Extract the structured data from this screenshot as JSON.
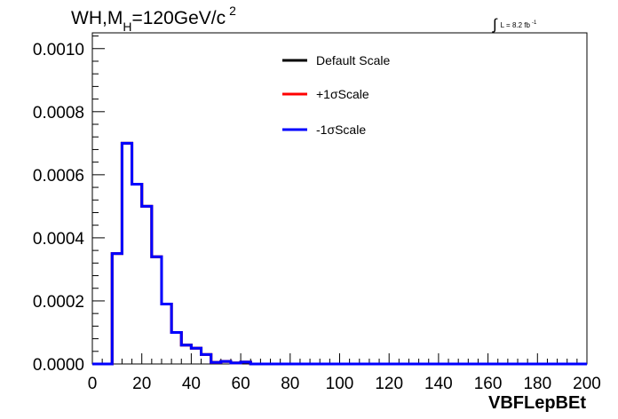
{
  "chart_data": {
    "type": "line",
    "title": {
      "prefix": "WH,M",
      "sub": "H",
      "mid": "=120GeV/c",
      "sup": "2"
    },
    "lumi_label": {
      "integral": "∫",
      "text": "L = 8.2 fb",
      "sup": "-1"
    },
    "xlabel": "VBFLepBEt",
    "ylabel": "",
    "xlim": [
      0,
      200
    ],
    "ylim": [
      0,
      0.00105
    ],
    "x_ticks": [
      "0",
      "20",
      "40",
      "60",
      "80",
      "100",
      "120",
      "140",
      "160",
      "180",
      "200"
    ],
    "y_ticks": [
      "0.0000",
      "0.0002",
      "0.0004",
      "0.0006",
      "0.0008",
      "0.0010"
    ],
    "bin_edges": [
      0,
      4,
      8,
      12,
      16,
      20,
      24,
      28,
      32,
      36,
      40,
      44,
      48,
      52,
      56,
      60,
      64,
      200
    ],
    "series": [
      {
        "name": "Default Scale",
        "color": "#000000",
        "values": [
          0,
          0,
          0.00035,
          0.0007,
          0.00057,
          0.0005,
          0.00034,
          0.00019,
          0.0001,
          6e-05,
          5e-05,
          3e-05,
          5e-06,
          8e-06,
          3e-06,
          6e-06,
          0
        ]
      },
      {
        "name": "+1σScale",
        "color": "#ff0000",
        "values": [
          0,
          0,
          0.00035,
          0.0007,
          0.00057,
          0.0005,
          0.00034,
          0.00019,
          0.0001,
          6e-05,
          5e-05,
          3e-05,
          5e-06,
          8e-06,
          3e-06,
          6e-06,
          0
        ]
      },
      {
        "name": "-1σScale",
        "color": "#0000ff",
        "values": [
          0,
          0,
          0.00035,
          0.0007,
          0.00057,
          0.0005,
          0.00034,
          0.00019,
          0.0001,
          6e-05,
          5e-05,
          3e-05,
          5e-06,
          8e-06,
          3e-06,
          6e-06,
          0
        ]
      }
    ],
    "legend_placement": "top-center",
    "grid": false
  }
}
